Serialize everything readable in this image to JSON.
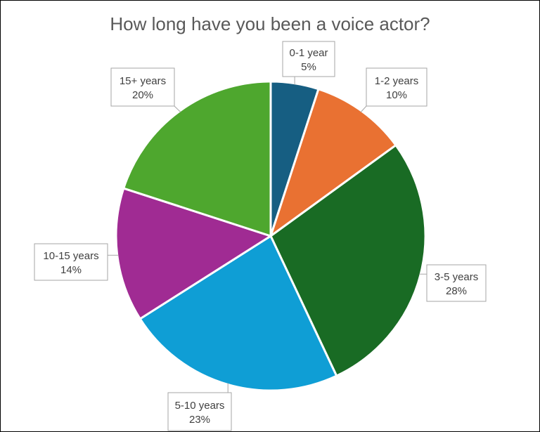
{
  "chart_data": {
    "type": "pie",
    "title": "How long have you been a voice actor?",
    "slices": [
      {
        "label": "0-1 year",
        "value": 5,
        "display": "5%",
        "color": "#165e82"
      },
      {
        "label": "1-2 years",
        "value": 10,
        "display": "10%",
        "color": "#e97132"
      },
      {
        "label": "3-5 years",
        "value": 28,
        "display": "28%",
        "color": "#196b24"
      },
      {
        "label": "5-10 years",
        "value": 23,
        "display": "23%",
        "color": "#0f9ed5"
      },
      {
        "label": "10-15 years",
        "value": 14,
        "display": "14%",
        "color": "#a02b93"
      },
      {
        "label": "15+ years",
        "value": 20,
        "display": "20%",
        "color": "#4ea72e"
      }
    ]
  }
}
